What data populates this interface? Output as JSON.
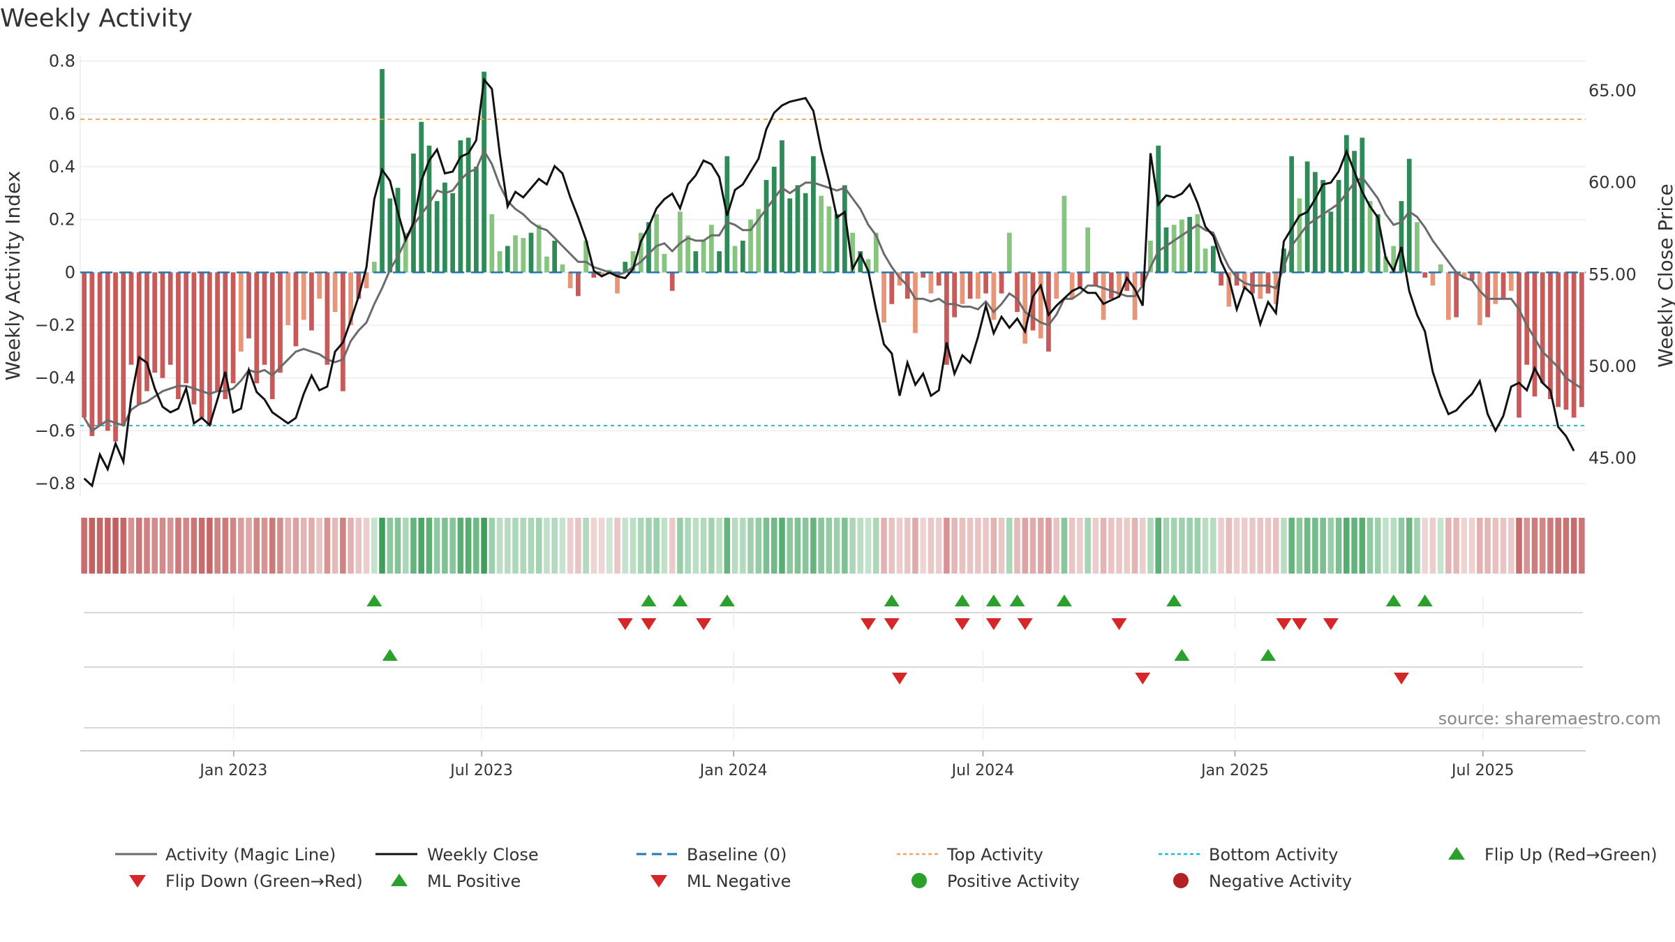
{
  "chart_data": {
    "type": "bar+line",
    "title": "Weekly Activity",
    "ylabel": "Weekly Activity Index",
    "y2label": "Weekly Close Price",
    "ylim": [
      -0.85,
      0.82
    ],
    "y2lim": [
      42.9,
      66.9
    ],
    "yticks": [
      0.8,
      0.6,
      0.4,
      0.2,
      0,
      -0.2,
      -0.4,
      -0.6,
      -0.8
    ],
    "ytick_labels": [
      "0.8",
      "0.6",
      "0.4",
      "0.2",
      "0",
      "−0.2",
      "−0.4",
      "−0.6",
      "−0.8"
    ],
    "y2ticks": [
      65,
      60,
      55,
      50,
      45
    ],
    "y2tick_labels": [
      "65.00",
      "60.00",
      "55.00",
      "50.00",
      "45.00"
    ],
    "x_start": "2022-09-11",
    "x_end": "2025-09-14",
    "xtick_dates": [
      "2023-01-01",
      "2023-07-01",
      "2024-01-01",
      "2024-07-01",
      "2025-01-01",
      "2025-07-01"
    ],
    "xtick_labels": [
      "Jan 2023",
      "Jul 2023",
      "Jan 2024",
      "Jul 2024",
      "Jan 2025",
      "Jul 2025"
    ],
    "top_activity": 0.58,
    "bottom_activity": -0.58,
    "baseline": 0,
    "activity_index": [
      -0.55,
      -0.62,
      -0.58,
      -0.6,
      -0.64,
      -0.58,
      -0.35,
      -0.5,
      -0.45,
      -0.38,
      -0.4,
      -0.35,
      -0.48,
      -0.42,
      -0.5,
      -0.55,
      -0.58,
      -0.45,
      -0.48,
      -0.42,
      -0.3,
      -0.25,
      -0.42,
      -0.35,
      -0.48,
      -0.38,
      -0.2,
      -0.28,
      -0.18,
      -0.22,
      -0.1,
      -0.35,
      -0.15,
      -0.45,
      -0.2,
      -0.1,
      -0.06,
      0.04,
      0.77,
      0.28,
      0.32,
      0.15,
      0.45,
      0.57,
      0.48,
      0.27,
      0.34,
      0.3,
      0.5,
      0.51,
      0.4,
      0.76,
      0.22,
      0.08,
      0.1,
      0.14,
      0.13,
      0.15,
      0.18,
      0.06,
      0.12,
      0.03,
      -0.06,
      -0.09,
      0.12,
      -0.02,
      -0.01,
      0.01,
      -0.08,
      0.04,
      0.08,
      0.15,
      0.19,
      0.22,
      0.07,
      -0.07,
      0.23,
      0.14,
      0.08,
      0.12,
      0.18,
      0.08,
      0.44,
      0.1,
      0.12,
      0.2,
      0.24,
      0.35,
      0.4,
      0.5,
      0.28,
      0.33,
      0.3,
      0.44,
      0.29,
      0.25,
      0.22,
      0.33,
      0.15,
      0.08,
      0.05,
      0.15,
      -0.19,
      -0.12,
      -0.05,
      -0.1,
      -0.23,
      -0.02,
      -0.08,
      -0.05,
      -0.35,
      -0.17,
      -0.12,
      -0.1,
      -0.1,
      -0.08,
      -0.18,
      -0.08,
      0.15,
      -0.15,
      -0.27,
      -0.22,
      -0.25,
      -0.3,
      -0.1,
      0.29,
      -0.1,
      -0.06,
      0.17,
      -0.05,
      -0.18,
      -0.1,
      -0.09,
      -0.07,
      -0.18,
      -0.05,
      0.12,
      0.48,
      0.17,
      0.18,
      0.2,
      0.21,
      0.22,
      0.09,
      0.1,
      -0.05,
      -0.13,
      -0.05,
      -0.06,
      -0.08,
      -0.1,
      -0.08,
      -0.12,
      0.09,
      0.44,
      0.28,
      0.42,
      0.38,
      0.35,
      0.23,
      0.35,
      0.52,
      0.46,
      0.51,
      0.27,
      0.22,
      0.06,
      0.1,
      0.27,
      0.43,
      0.19,
      -0.02,
      -0.05,
      0.03,
      -0.18,
      -0.17,
      -0.02,
      -0.03,
      -0.2,
      -0.17,
      -0.12,
      -0.1,
      -0.07,
      -0.55,
      -0.35,
      -0.47,
      -0.42,
      -0.48,
      -0.51,
      -0.52,
      -0.55,
      -0.51
    ],
    "magic_line": [
      -0.55,
      -0.6,
      -0.58,
      -0.56,
      -0.57,
      -0.58,
      -0.52,
      -0.5,
      -0.49,
      -0.47,
      -0.45,
      -0.44,
      -0.43,
      -0.43,
      -0.44,
      -0.45,
      -0.46,
      -0.45,
      -0.45,
      -0.44,
      -0.41,
      -0.37,
      -0.38,
      -0.37,
      -0.39,
      -0.36,
      -0.33,
      -0.3,
      -0.29,
      -0.3,
      -0.31,
      -0.33,
      -0.34,
      -0.33,
      -0.26,
      -0.22,
      -0.19,
      -0.12,
      -0.06,
      0.01,
      0.06,
      0.12,
      0.18,
      0.22,
      0.26,
      0.31,
      0.3,
      0.31,
      0.35,
      0.38,
      0.39,
      0.46,
      0.41,
      0.33,
      0.27,
      0.24,
      0.22,
      0.19,
      0.17,
      0.16,
      0.13,
      0.1,
      0.07,
      0.04,
      0.04,
      0.02,
      0.01,
      0,
      -0.01,
      0,
      0.02,
      0.04,
      0.07,
      0.1,
      0.11,
      0.08,
      0.11,
      0.13,
      0.12,
      0.12,
      0.14,
      0.14,
      0.19,
      0.18,
      0.16,
      0.16,
      0.2,
      0.24,
      0.28,
      0.32,
      0.3,
      0.32,
      0.34,
      0.34,
      0.33,
      0.32,
      0.31,
      0.32,
      0.28,
      0.24,
      0.18,
      0.14,
      0.07,
      0.02,
      -0.02,
      -0.05,
      -0.1,
      -0.1,
      -0.11,
      -0.1,
      -0.12,
      -0.12,
      -0.13,
      -0.13,
      -0.14,
      -0.11,
      -0.15,
      -0.12,
      -0.08,
      -0.1,
      -0.15,
      -0.17,
      -0.19,
      -0.2,
      -0.16,
      -0.1,
      -0.1,
      -0.08,
      -0.05,
      -0.05,
      -0.06,
      -0.07,
      -0.08,
      -0.09,
      -0.09,
      -0.05,
      0.02,
      0.08,
      0.1,
      0.12,
      0.14,
      0.16,
      0.18,
      0.16,
      0.15,
      0.08,
      0.02,
      -0.02,
      -0.04,
      -0.05,
      -0.05,
      -0.05,
      -0.06,
      0.02,
      0.1,
      0.14,
      0.18,
      0.2,
      0.22,
      0.24,
      0.26,
      0.3,
      0.34,
      0.36,
      0.32,
      0.28,
      0.22,
      0.18,
      0.19,
      0.23,
      0.21,
      0.17,
      0.12,
      0.08,
      0.04,
      0,
      -0.02,
      -0.03,
      -0.07,
      -0.1,
      -0.1,
      -0.1,
      -0.1,
      -0.14,
      -0.2,
      -0.25,
      -0.3,
      -0.33,
      -0.36,
      -0.4,
      -0.42,
      -0.44
    ],
    "weekly_close": [
      43.9,
      43.5,
      45.2,
      44.4,
      45.8,
      44.8,
      48.3,
      50.5,
      50.2,
      48.8,
      47.8,
      47.5,
      47.7,
      48.8,
      46.9,
      47.2,
      46.8,
      48.2,
      49.7,
      47.5,
      47.7,
      49.8,
      48.6,
      48.2,
      47.5,
      47.2,
      46.9,
      47.2,
      48.5,
      49.5,
      48.7,
      48.9,
      50.8,
      51.3,
      52.5,
      53.8,
      55.4,
      59.1,
      60.7,
      60.1,
      58.4,
      56.9,
      57.8,
      60.1,
      61.2,
      61.8,
      60.5,
      60.6,
      61.4,
      61.6,
      62.3,
      65.6,
      65.1,
      61.6,
      58.7,
      59.5,
      59.2,
      59.7,
      60.2,
      59.9,
      60.9,
      60.5,
      59.2,
      58.1,
      56.9,
      55.2,
      54.9,
      55.1,
      54.9,
      54.8,
      55.3,
      56.8,
      57.6,
      58.6,
      59.1,
      59.4,
      58.6,
      59.9,
      60.4,
      61.2,
      61.0,
      60.3,
      58.2,
      59.6,
      59.9,
      60.6,
      61.3,
      62.9,
      63.8,
      64.2,
      64.4,
      64.5,
      64.6,
      63.9,
      61.8,
      60.1,
      58.1,
      58.4,
      55.3,
      56.1,
      55.2,
      53.1,
      51.2,
      50.7,
      48.4,
      50.2,
      49.0,
      49.6,
      48.4,
      48.7,
      51.3,
      49.6,
      50.6,
      50.2,
      51.6,
      53.3,
      51.8,
      52.7,
      52.1,
      52.6,
      51.9,
      53.8,
      54.4,
      52.8,
      53.3,
      53.7,
      54.1,
      54.3,
      54.0,
      54.0,
      53.4,
      53.6,
      53.8,
      54.8,
      54.2,
      53.3,
      61.6,
      58.8,
      59.3,
      59.2,
      59.4,
      59.9,
      58.9,
      57.6,
      57.1,
      55.7,
      54.8,
      53.1,
      54.3,
      53.9,
      52.3,
      53.5,
      52.9,
      56.8,
      57.5,
      58.2,
      58.4,
      59.1,
      59.9,
      60.0,
      60.6,
      61.7,
      60.6,
      59.5,
      58.7,
      58.1,
      55.9,
      55.2,
      56.5,
      54.1,
      52.8,
      51.9,
      49.7,
      48.4,
      47.4,
      47.6,
      48.1,
      48.5,
      49.2,
      47.4,
      46.5,
      47.3,
      48.9,
      49.1,
      48.7,
      49.9,
      49.1,
      48.7,
      46.7,
      46.2,
      45.4
    ],
    "flip_up_weeks": [
      37,
      72,
      76,
      82,
      103,
      112,
      116,
      119,
      125,
      139,
      167,
      171
    ],
    "flip_down_weeks": [
      69,
      72,
      79,
      100,
      103,
      112,
      116,
      120,
      132,
      153,
      155,
      159
    ],
    "ml_positive_weeks": [
      39,
      140,
      151
    ],
    "ml_negative_weeks": [
      104,
      135,
      168
    ],
    "colors": {
      "strong_green": "#2e8b57",
      "light_green": "#86c47f",
      "strong_red": "#c85a5a",
      "light_red": "#e8967a",
      "magic_line": "#6b6b6b",
      "weekly_close": "#111111",
      "baseline": "#1f77b4",
      "top_activity": "#f4a460",
      "bottom_activity": "#17becf",
      "flip_up": "#2ca02c",
      "flip_down": "#d62728",
      "positive_activity": "#2ca02c",
      "negative_activity": "#b22222"
    },
    "legend": [
      {
        "key": "magic",
        "label": "Activity (Magic Line)"
      },
      {
        "key": "close",
        "label": "Weekly Close"
      },
      {
        "key": "baseline",
        "label": "Baseline (0)"
      },
      {
        "key": "top",
        "label": "Top Activity"
      },
      {
        "key": "bottom",
        "label": "Bottom Activity"
      },
      {
        "key": "flipup",
        "label": "Flip Up (Red→Green)"
      },
      {
        "key": "flipdown",
        "label": "Flip Down (Green→Red)"
      },
      {
        "key": "mlpos",
        "label": "ML Positive"
      },
      {
        "key": "mlneg",
        "label": "ML Negative"
      },
      {
        "key": "posact",
        "label": "Positive Activity"
      },
      {
        "key": "negact",
        "label": "Negative Activity"
      }
    ],
    "source": "source: sharemaestro.com"
  }
}
